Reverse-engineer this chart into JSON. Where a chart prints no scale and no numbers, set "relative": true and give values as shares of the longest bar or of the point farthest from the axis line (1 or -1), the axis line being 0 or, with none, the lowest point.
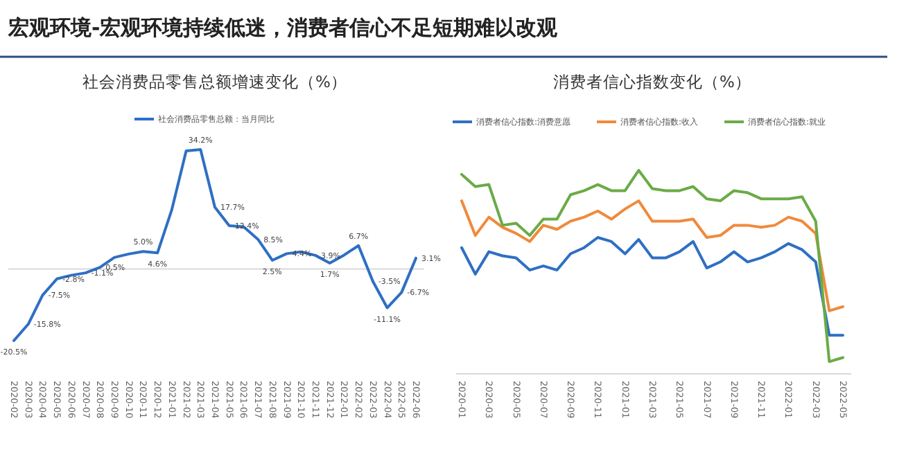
{
  "chart_data": [
    {
      "type": "line",
      "title": "社会消费品零售总额增速变化（%）",
      "annotations": [
        "宏观环境-宏观环境持续低迷，消费者信心不足短期难以改观"
      ],
      "categories": [
        "2020-02",
        "2020-03",
        "2020-04",
        "2020-05",
        "2020-06",
        "2020-07",
        "2020-08",
        "2020-09",
        "2020-10",
        "2020-11",
        "2020-12",
        "2021-01",
        "2021-02",
        "2021-03",
        "2021-04",
        "2021-05",
        "2021-06",
        "2021-07",
        "2021-08",
        "2021-09",
        "2021-10",
        "2021-11",
        "2021-12",
        "2022-01",
        "2022-02",
        "2022-03",
        "2022-04",
        "2022-05",
        "2022-06"
      ],
      "series": [
        {
          "name": "社会消费品零售总额：当月同比",
          "color": "#2e6fc4",
          "values": [
            -20.5,
            -15.8,
            -7.5,
            -2.8,
            -1.8,
            -1.1,
            0.5,
            3.3,
            4.3,
            5.0,
            4.6,
            17,
            33.8,
            34.2,
            17.7,
            12.4,
            12.1,
            8.5,
            2.5,
            4.4,
            4.9,
            3.9,
            1.7,
            4,
            6.7,
            -3.5,
            -11.1,
            -6.7,
            3.1
          ],
          "value_labels": [
            "-20.5%",
            "-15.8%",
            "-7.5%",
            "-2.8%",
            null,
            "-1.1%",
            "0.5%",
            null,
            null,
            "5.0%",
            "4.6%",
            null,
            null,
            "34.2%",
            "17.7%",
            "12.4%",
            null,
            "8.5%",
            "2.5%",
            "4.4%",
            null,
            "3.9%",
            "1.7%",
            null,
            "6.7%",
            "-3.5%",
            "-11.1%",
            "-6.7%",
            "3.1%"
          ]
        }
      ],
      "legend": "top",
      "marker": "none",
      "line_style": "solid"
    },
    {
      "type": "line",
      "title": "消费者信心指数变化（%）",
      "relative": true,
      "categories": [
        "2020-01",
        null,
        "2020-03",
        null,
        "2020-05",
        null,
        "2020-07",
        null,
        "2020-09",
        null,
        "2020-11",
        null,
        "2021-01",
        null,
        "2021-03",
        null,
        "2021-05",
        null,
        "2021-07",
        null,
        "2021-09",
        null,
        "2021-11",
        null,
        "2022-01",
        null,
        "2022-03",
        null,
        "2022-05"
      ],
      "series": [
        {
          "name": "消费者信心指数:消费意愿",
          "color": "#2e6fc4",
          "values": [
            0.62,
            0.49,
            0.6,
            0.58,
            0.57,
            0.51,
            0.53,
            0.51,
            0.59,
            0.62,
            0.67,
            0.65,
            0.59,
            0.66,
            0.57,
            0.57,
            0.6,
            0.65,
            0.52,
            0.55,
            0.6,
            0.55,
            0.57,
            0.6,
            0.64,
            0.61,
            0.55,
            0.19,
            0.19
          ]
        },
        {
          "name": "消费者信心指数:收入",
          "color": "#f08a3c",
          "values": [
            0.85,
            0.68,
            0.77,
            0.72,
            0.69,
            0.65,
            0.73,
            0.71,
            0.75,
            0.77,
            0.8,
            0.76,
            0.81,
            0.85,
            0.75,
            0.75,
            0.75,
            0.76,
            0.67,
            0.68,
            0.73,
            0.73,
            0.72,
            0.73,
            0.77,
            0.75,
            0.69,
            0.31,
            0.33
          ]
        },
        {
          "name": "消费者信心指数:就业",
          "color": "#6aab46",
          "values": [
            0.98,
            0.92,
            0.93,
            0.73,
            0.74,
            0.68,
            0.76,
            0.76,
            0.88,
            0.9,
            0.93,
            0.9,
            0.9,
            1.0,
            0.91,
            0.9,
            0.9,
            0.92,
            0.86,
            0.85,
            0.9,
            0.89,
            0.86,
            0.86,
            0.86,
            0.87,
            0.75,
            0.06,
            0.08
          ]
        }
      ],
      "legend": "top",
      "marker": "none",
      "line_style": "solid"
    }
  ]
}
